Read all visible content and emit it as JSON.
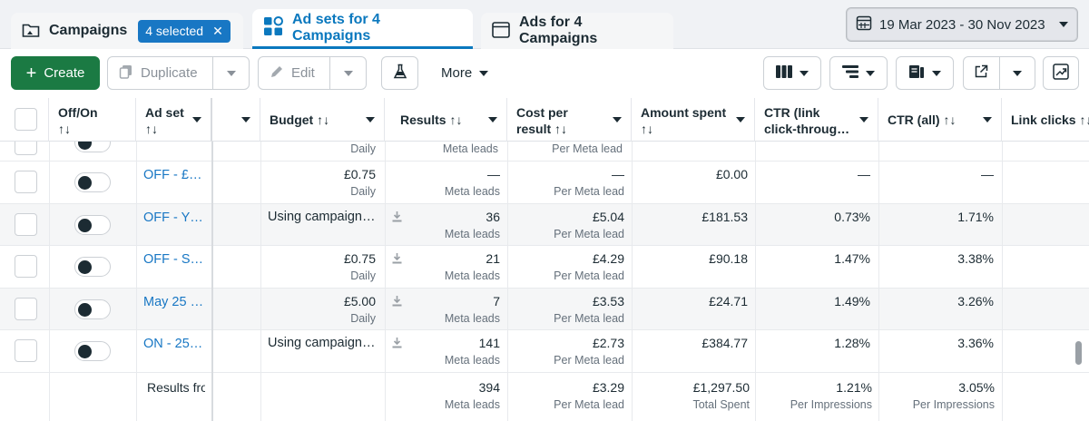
{
  "tabs": {
    "campaigns": {
      "label": "Campaigns",
      "selected_badge": "4 selected",
      "clear": "✕"
    },
    "adsets": {
      "label": "Ad sets for 4 Campaigns"
    },
    "ads": {
      "label": "Ads for 4 Campaigns"
    }
  },
  "date_range": "19 Mar 2023 - 30 Nov 2023",
  "toolbar": {
    "create": "Create",
    "duplicate": "Duplicate",
    "edit": "Edit",
    "more": "More"
  },
  "columns": {
    "offon": "Off/On",
    "adset": "Ad set",
    "budget": "Budget",
    "results": "Results",
    "cost1": "Cost per",
    "cost2": "result",
    "amount1": "Amount spent",
    "ctrlink1": "CTR (link",
    "ctrlink2": "click-throug…",
    "ctrall": "CTR (all)",
    "linkclicks": "Link clicks",
    "sort": "↑↓"
  },
  "top_partial": {
    "budget_sub": "Daily",
    "results_sub": "Meta leads",
    "cost_sub": "Per Meta lead"
  },
  "rows": [
    {
      "name": "OFF - £…",
      "budget": "£0.75",
      "budget_sub": "Daily",
      "results": "—",
      "results_sub": "Meta leads",
      "cost": "—",
      "cost_sub": "Per Meta lead",
      "amount": "£0.00",
      "ctr_link": "—",
      "ctr_all": "—"
    },
    {
      "name": "OFF - Y…",
      "budget": "Using campaign…",
      "budget_sub": "",
      "results": "36",
      "results_sub": "Meta leads",
      "cost": "£5.04",
      "cost_sub": "Per Meta lead",
      "amount": "£181.53",
      "ctr_link": "0.73%",
      "ctr_all": "1.71%"
    },
    {
      "name": "OFF - S…",
      "budget": "£0.75",
      "budget_sub": "Daily",
      "results": "21",
      "results_sub": "Meta leads",
      "cost": "£4.29",
      "cost_sub": "Per Meta lead",
      "amount": "£90.18",
      "ctr_link": "1.47%",
      "ctr_all": "3.38%"
    },
    {
      "name": "May 25 …",
      "budget": "£5.00",
      "budget_sub": "Daily",
      "results": "7",
      "results_sub": "Meta leads",
      "cost": "£3.53",
      "cost_sub": "Per Meta lead",
      "amount": "£24.71",
      "ctr_link": "1.49%",
      "ctr_all": "3.26%"
    },
    {
      "name": "ON - 25…",
      "budget": "Using campaign…",
      "budget_sub": "",
      "results": "141",
      "results_sub": "Meta leads",
      "cost": "£2.73",
      "cost_sub": "Per Meta lead",
      "amount": "£384.77",
      "ctr_link": "1.28%",
      "ctr_all": "3.36%"
    }
  ],
  "totals": {
    "label": "Results fro",
    "results": "394",
    "results_sub": "Meta leads",
    "cost": "£3.29",
    "cost_sub": "Per Meta lead",
    "amount": "£1,297.50",
    "amount_sub": "Total Spent",
    "ctr_link": "1.21%",
    "ctr_link_sub": "Per Impressions",
    "ctr_all": "3.05%",
    "ctr_all_sub": "Per Impressions"
  }
}
